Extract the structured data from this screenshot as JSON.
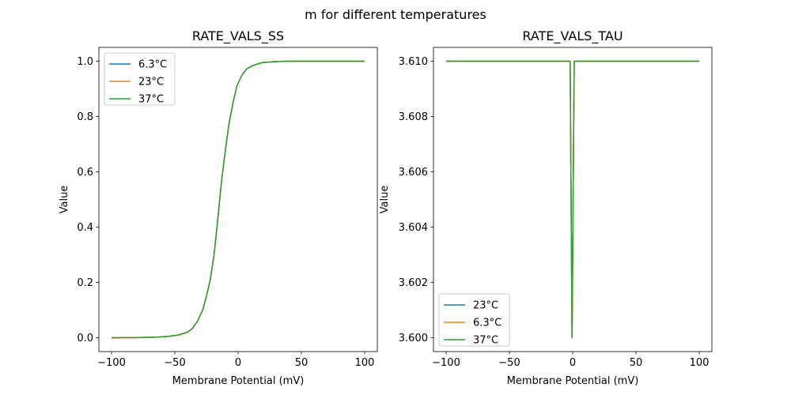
{
  "suptitle": "m for different temperatures",
  "chart_data": [
    {
      "type": "line",
      "title": "RATE_VALS_SS",
      "xlabel": "Membrane Potential (mV)",
      "ylabel": "Value",
      "xlim": [
        -110,
        110
      ],
      "ylim": [
        -0.05,
        1.05
      ],
      "xticks": [
        -100,
        -50,
        0,
        50,
        100
      ],
      "xtick_labels": [
        "−100",
        "−50",
        "0",
        "50",
        "100"
      ],
      "yticks": [
        0,
        0.2,
        0.4,
        0.6,
        0.8,
        1.0
      ],
      "ytick_labels": [
        "0.0",
        "0.2",
        "0.4",
        "0.6",
        "0.8",
        "1.0"
      ],
      "legend": "top-left",
      "x": [
        -100,
        -80,
        -64,
        -55,
        -47,
        -40,
        -36,
        -32,
        -28,
        -25,
        -22,
        -19,
        -17,
        -13,
        -10,
        -7.5,
        -4,
        -1,
        3,
        7,
        12,
        19,
        30,
        40,
        100
      ],
      "series": [
        {
          "name": "6.3°C",
          "color": "#1f77b4",
          "values": [
            0,
            0.0005,
            0.002,
            0.005,
            0.01,
            0.02,
            0.034,
            0.06,
            0.1,
            0.15,
            0.21,
            0.3,
            0.385,
            0.57,
            0.68,
            0.765,
            0.85,
            0.91,
            0.95,
            0.973,
            0.985,
            0.995,
            0.999,
            1,
            1
          ]
        },
        {
          "name": "23°C",
          "color": "#ff7f0e",
          "values": [
            0,
            0.0005,
            0.002,
            0.005,
            0.01,
            0.02,
            0.034,
            0.06,
            0.1,
            0.15,
            0.21,
            0.3,
            0.385,
            0.57,
            0.68,
            0.765,
            0.85,
            0.91,
            0.95,
            0.973,
            0.985,
            0.995,
            0.999,
            1,
            1
          ]
        },
        {
          "name": "37°C",
          "color": "#2ca02c",
          "values": [
            0,
            0.0005,
            0.002,
            0.005,
            0.01,
            0.02,
            0.034,
            0.06,
            0.1,
            0.15,
            0.21,
            0.3,
            0.385,
            0.57,
            0.68,
            0.765,
            0.85,
            0.91,
            0.95,
            0.973,
            0.985,
            0.995,
            0.999,
            1,
            1
          ]
        }
      ]
    },
    {
      "type": "line",
      "title": "RATE_VALS_TAU",
      "xlabel": "Membrane Potential (mV)",
      "ylabel": "Value",
      "xlim": [
        -110,
        110
      ],
      "ylim": [
        3.5995,
        3.6105
      ],
      "xticks": [
        -100,
        -50,
        0,
        50,
        100
      ],
      "xtick_labels": [
        "−100",
        "−50",
        "0",
        "50",
        "100"
      ],
      "yticks": [
        3.6,
        3.602,
        3.604,
        3.606,
        3.608,
        3.61
      ],
      "ytick_labels": [
        "3.600",
        "3.602",
        "3.604",
        "3.606",
        "3.608",
        "3.610"
      ],
      "legend": "bottom-left",
      "x": [
        -100,
        -2,
        -0.5,
        1.2,
        100
      ],
      "series": [
        {
          "name": "23°C",
          "color": "#1f77b4",
          "values": [
            3.61,
            3.61,
            3.6,
            3.61,
            3.61
          ]
        },
        {
          "name": "6.3°C",
          "color": "#ff7f0e",
          "values": [
            3.61,
            3.61,
            3.6,
            3.61,
            3.61
          ]
        },
        {
          "name": "37°C",
          "color": "#2ca02c",
          "values": [
            3.61,
            3.61,
            3.6,
            3.61,
            3.61
          ]
        }
      ]
    }
  ]
}
